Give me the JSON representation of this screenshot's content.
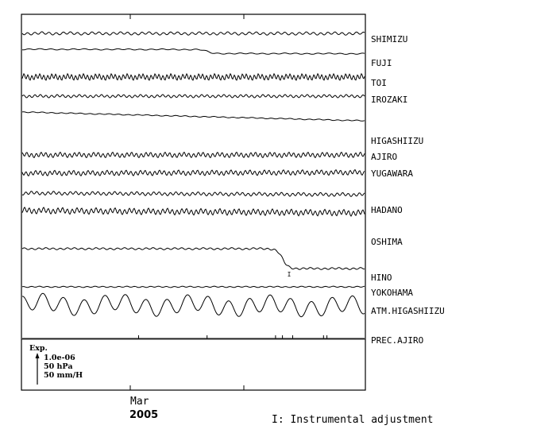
{
  "chart_data": {
    "type": "line",
    "title": "",
    "xlabel": "",
    "ylabel": "",
    "x_ticks": [
      {
        "month": "Mar",
        "year": "2005"
      },
      {
        "month": "",
        "year": ""
      }
    ],
    "scale_legend": {
      "label": "Exp.",
      "entries": [
        "1.0e-06",
        "50 hPa",
        "50 mm/H"
      ]
    },
    "series": [
      {
        "name": "SHIMIZU",
        "trend": 0.2,
        "wave_amp": 1.5,
        "wave_period": 9
      },
      {
        "name": "FUJI",
        "trend": 0.6,
        "wave_amp": 0.6,
        "wave_period": 14,
        "step_at": 0.54,
        "step_size": 5
      },
      {
        "name": "TOI",
        "trend": 0,
        "wave_amp": 3,
        "wave_period": 5
      },
      {
        "name": "IROZAKI",
        "trend": 0,
        "wave_amp": 1.5,
        "wave_period": 7
      },
      {
        "name": "HIGASHIIZU",
        "trend": 11,
        "wave_amp": 0.5,
        "wave_period": 12
      },
      {
        "name": "AJIRO",
        "trend": 0,
        "wave_amp": 2.5,
        "wave_period": 6
      },
      {
        "name": "YUGAWARA",
        "trend": -1,
        "wave_amp": 2.5,
        "wave_period": 6
      },
      {
        "name": "HADANO",
        "trend": 2,
        "wave_amp": 1.8,
        "wave_period": 7
      },
      {
        "name": "OSHIMA",
        "trend": 3,
        "wave_amp": 3,
        "wave_period": 6
      },
      {
        "name": "HINO",
        "trend": 0,
        "wave_amp": 1,
        "wave_period": 9,
        "step_at": 0.76,
        "step_size": 25,
        "marker": "I"
      },
      {
        "name": "YOKOHAMA",
        "trend": 0,
        "wave_amp": 0.6,
        "wave_period": 10
      },
      {
        "name": "ATM.HIGASHIIZU",
        "trend": 3,
        "wave_amp": 10,
        "wave_period": 26
      },
      {
        "name": "PREC.AJIRO",
        "trend": 0,
        "wave_amp": 0,
        "wave_period": 0,
        "spikes": [
          0.34,
          0.54,
          0.74,
          0.76,
          0.79,
          0.88,
          0.89
        ]
      }
    ],
    "annotation": "I: Instrumental adjustment"
  }
}
